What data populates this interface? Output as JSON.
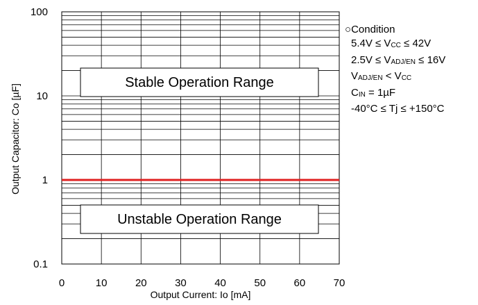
{
  "chart_data": {
    "type": "line",
    "xlabel": "Output Current: Io [mA]",
    "ylabel": "Output Capacitor: Co [µF]",
    "xlim": [
      0,
      70
    ],
    "ylim": [
      0.1,
      100
    ],
    "y_scale": "log",
    "x_ticks": [
      "0",
      "10",
      "20",
      "30",
      "40",
      "50",
      "60",
      "70"
    ],
    "y_ticks": [
      "0.1",
      "1",
      "10",
      "100"
    ],
    "grid": true,
    "series": [
      {
        "x": [
          0,
          70
        ],
        "values": [
          1,
          1
        ],
        "color": "#e02020"
      }
    ],
    "annotations": {
      "stable": "Stable Operation Range",
      "unstable": "Unstable Operation Range"
    }
  },
  "conditions": {
    "heading": "Condition",
    "vcc_range": {
      "left": "5.4V ≤ V",
      "sub": "CC",
      "right": " ≤ 42V"
    },
    "vadj_range": {
      "left": "2.5V ≤ V",
      "sub": "ADJ/EN",
      "right": " ≤ 16V"
    },
    "vadj_vcc": {
      "left": "V",
      "sub": "ADJ/EN",
      "mid": " < V",
      "sub2": "CC"
    },
    "cin": {
      "left": "C",
      "sub": "IN",
      "right": " = 1µF"
    },
    "tj_range": "-40°C ≤ Tj ≤ +150°C"
  }
}
